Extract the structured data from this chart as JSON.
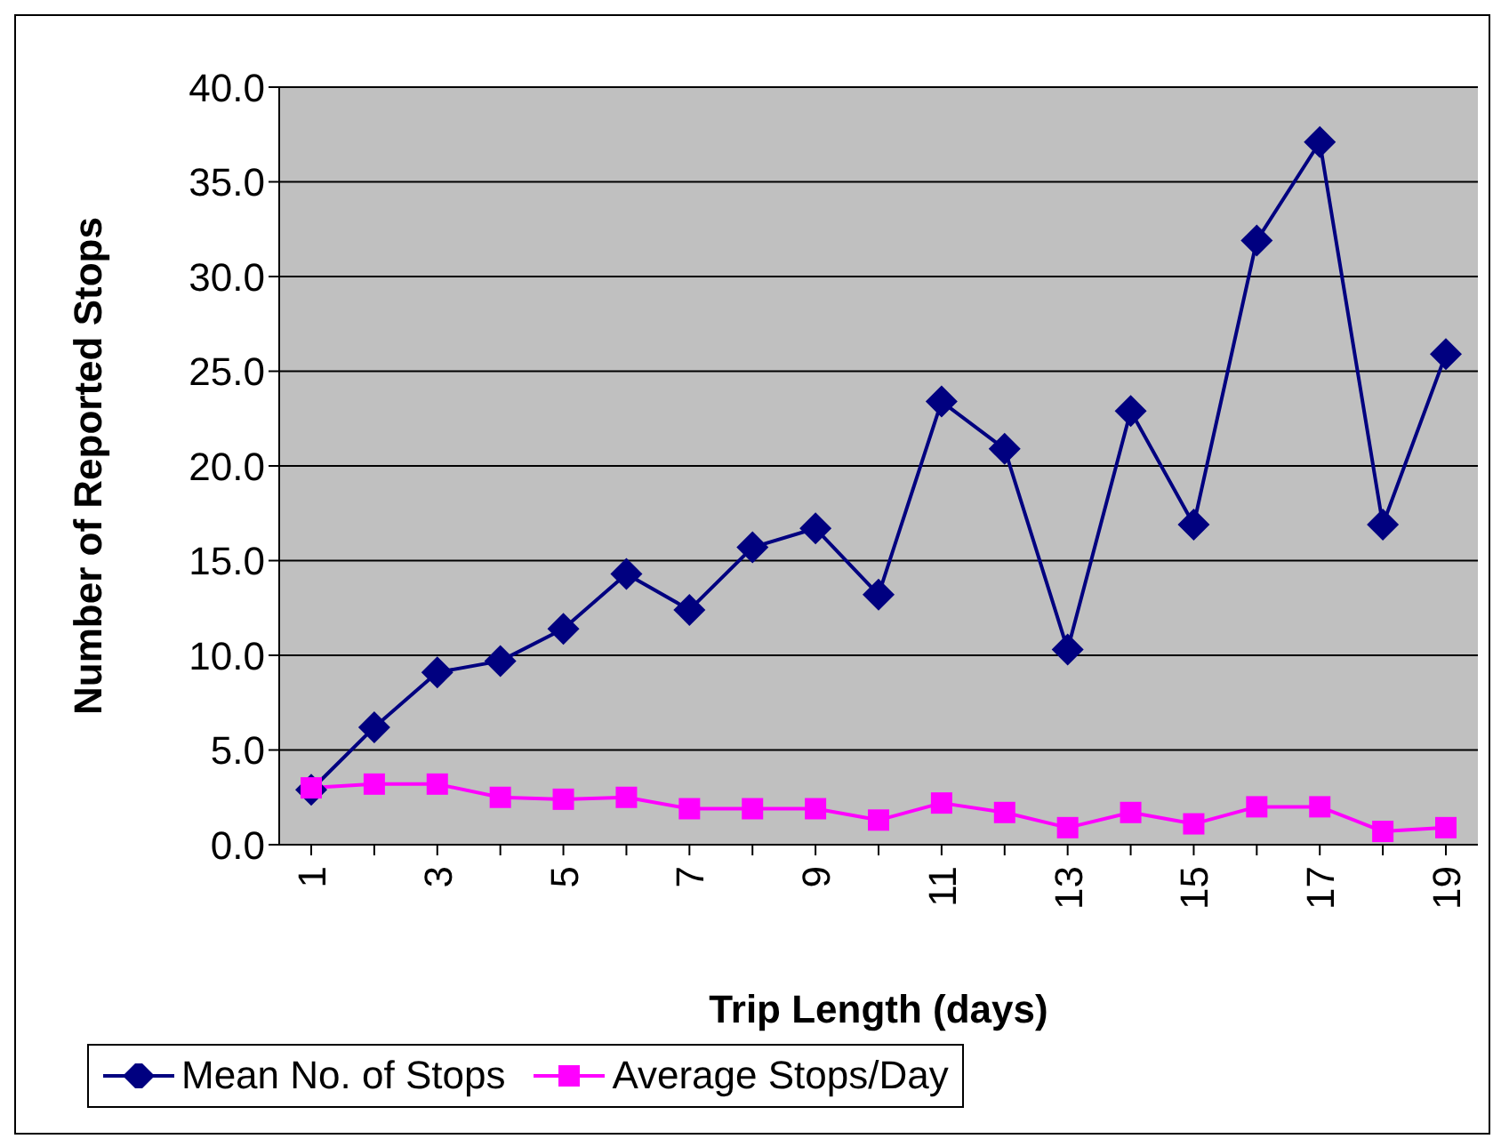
{
  "chart_data": {
    "type": "line",
    "xlabel": "Trip Length (days)",
    "ylabel": "Number of Reported Stops",
    "categories": [
      "1",
      null,
      "3",
      null,
      "5",
      null,
      "7",
      null,
      "9",
      null,
      "11",
      null,
      "13",
      null,
      "15",
      null,
      "17",
      null,
      "19"
    ],
    "series": [
      {
        "name": "Mean No. of Stops",
        "color": "#000080",
        "marker": "diamond",
        "values": [
          2.9,
          6.2,
          9.1,
          9.7,
          11.4,
          14.3,
          12.4,
          15.7,
          16.7,
          13.2,
          23.4,
          20.9,
          10.3,
          22.9,
          16.9,
          31.9,
          37.1,
          16.9,
          25.9
        ]
      },
      {
        "name": "Average Stops/Day",
        "color": "#ff00ff",
        "marker": "square",
        "values": [
          3.0,
          3.2,
          3.2,
          2.5,
          2.4,
          2.5,
          1.9,
          1.9,
          1.9,
          1.3,
          2.2,
          1.7,
          0.9,
          1.7,
          1.1,
          2.0,
          2.0,
          0.7,
          0.9
        ]
      }
    ],
    "ylim": [
      0,
      40
    ],
    "yticks": [
      {
        "value": 0,
        "label": "0.0"
      },
      {
        "value": 5,
        "label": "5.0"
      },
      {
        "value": 10,
        "label": "10.0"
      },
      {
        "value": 15,
        "label": "15.0"
      },
      {
        "value": 20,
        "label": "20.0"
      },
      {
        "value": 25,
        "label": "25.0"
      },
      {
        "value": 30,
        "label": "30.0"
      },
      {
        "value": 35,
        "label": "35.0"
      },
      {
        "value": 40,
        "label": "40.0"
      }
    ],
    "grid": "y",
    "legend": "bottom",
    "line_style": "solid"
  }
}
